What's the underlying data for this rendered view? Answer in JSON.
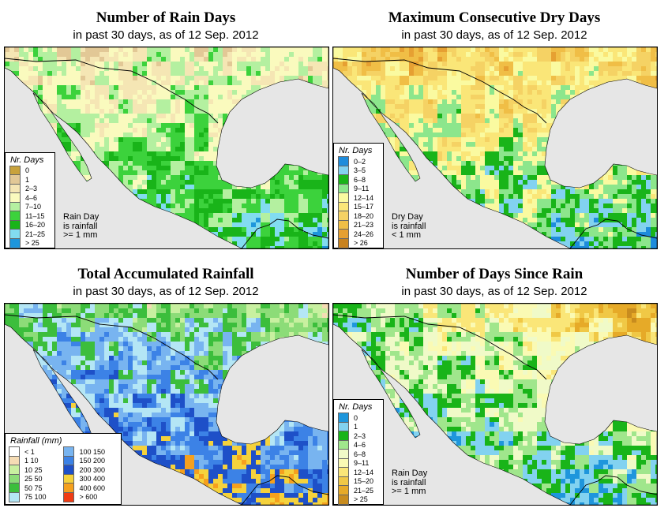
{
  "panels": [
    {
      "title": "Number of Rain Days",
      "subtitle": "in past 30 days, as of  12 Sep. 2012",
      "legend_title": "Nr. Days",
      "legend": [
        {
          "label": "0",
          "color": "#c8a23c"
        },
        {
          "label": "1",
          "color": "#e2c896"
        },
        {
          "label": "2–3",
          "color": "#f5e6b4"
        },
        {
          "label": "4–6",
          "color": "#fafabe"
        },
        {
          "label": "7–10",
          "color": "#b4f0a0"
        },
        {
          "label": "11–15",
          "color": "#3cd23c"
        },
        {
          "label": "16–20",
          "color": "#19b419"
        },
        {
          "label": "21–25",
          "color": "#82dcf0"
        },
        {
          "label": "> 25",
          "color": "#1e96dc"
        }
      ],
      "note": [
        "Rain Day",
        "is rainfall",
        ">= 1 mm"
      ]
    },
    {
      "title": "Maximum Consecutive Dry Days",
      "subtitle": "in past 30 days, as of  12 Sep. 2012",
      "legend_title": "Nr. Days",
      "legend": [
        {
          "label": "0–2",
          "color": "#1e8cdc"
        },
        {
          "label": "3–5",
          "color": "#82d2f0"
        },
        {
          "label": "6–8",
          "color": "#19b419"
        },
        {
          "label": "9–11",
          "color": "#8ce68c"
        },
        {
          "label": "12–14",
          "color": "#fafaa0"
        },
        {
          "label": "15–17",
          "color": "#fae678"
        },
        {
          "label": "18–20",
          "color": "#f5d264"
        },
        {
          "label": "21–23",
          "color": "#f0be46"
        },
        {
          "label": "24–26",
          "color": "#e6a032"
        },
        {
          "label": "> 26",
          "color": "#c8821e"
        }
      ],
      "note": [
        "Dry Day",
        "is rainfall",
        "< 1 mm"
      ]
    },
    {
      "title": "Total Accumulated Rainfall",
      "subtitle": "in past 30 days, as of  12 Sep. 2012",
      "legend_title": "Rainfall (mm)",
      "legend": [
        {
          "label": "< 1",
          "color": "#ffffff"
        },
        {
          "label": "1    10",
          "color": "#f5dcb4"
        },
        {
          "label": "10   25",
          "color": "#c8f0a0"
        },
        {
          "label": "25   50",
          "color": "#8cdc78"
        },
        {
          "label": "50   75",
          "color": "#3cbe3c"
        },
        {
          "label": "75  100",
          "color": "#b4e6f5"
        },
        {
          "label": "100  150",
          "color": "#78b4f0"
        },
        {
          "label": "150  200",
          "color": "#3c82e6"
        },
        {
          "label": "200  300",
          "color": "#1e50c8"
        },
        {
          "label": "300  400",
          "color": "#f5d23c"
        },
        {
          "label": "400  600",
          "color": "#f5a01e"
        },
        {
          "label": "> 600",
          "color": "#f03c14"
        }
      ],
      "note": []
    },
    {
      "title": "Number of Days Since Rain",
      "subtitle": "in past 30 days, as of  12 Sep. 2012",
      "legend_title": "Nr. Days",
      "legend": [
        {
          "label": "0",
          "color": "#1e96dc"
        },
        {
          "label": "1",
          "color": "#82d2f0"
        },
        {
          "label": "2–3",
          "color": "#19b419"
        },
        {
          "label": "4–6",
          "color": "#a0e68c"
        },
        {
          "label": "6–8",
          "color": "#f0fac8"
        },
        {
          "label": "9–11",
          "color": "#fafab4"
        },
        {
          "label": "12–14",
          "color": "#fae678"
        },
        {
          "label": "15–20",
          "color": "#f0c846"
        },
        {
          "label": "21–25",
          "color": "#e6aa28"
        },
        {
          "label": "> 25",
          "color": "#c88c1e"
        }
      ],
      "note": [
        "Rain Day",
        "is rainfall",
        ">= 1 mm"
      ]
    }
  ],
  "colors": {
    "ocean": "#e6e6e6",
    "border": "#000000"
  }
}
